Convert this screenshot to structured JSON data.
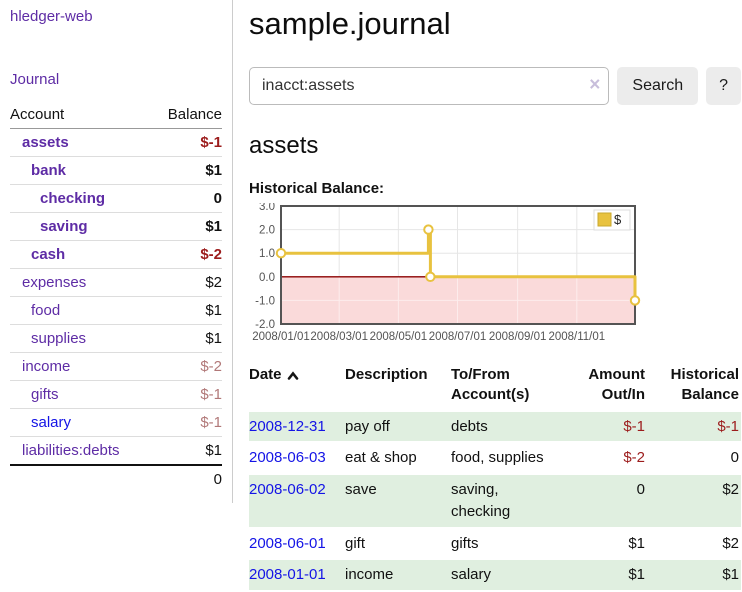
{
  "sidebar": {
    "brand": "hledger-web",
    "nav_journal": "Journal",
    "table": {
      "headers": [
        "Account",
        "Balance"
      ],
      "rows": [
        {
          "account": "assets",
          "indent": 0,
          "bold": true,
          "balance": "$-1",
          "tone": "neg"
        },
        {
          "account": "bank",
          "indent": 1,
          "bold": true,
          "balance": "$1",
          "tone": "pos"
        },
        {
          "account": "checking",
          "indent": 2,
          "bold": true,
          "balance": "0",
          "tone": "pos"
        },
        {
          "account": "saving",
          "indent": 2,
          "bold": true,
          "balance": "$1",
          "tone": "pos"
        },
        {
          "account": "cash",
          "indent": 1,
          "bold": true,
          "balance": "$-2",
          "tone": "neg"
        },
        {
          "account": "expenses",
          "indent": 0,
          "bold": false,
          "balance": "$2",
          "tone": "pos"
        },
        {
          "account": "food",
          "indent": 1,
          "bold": false,
          "balance": "$1",
          "tone": "pos"
        },
        {
          "account": "supplies",
          "indent": 1,
          "bold": false,
          "balance": "$1",
          "tone": "pos"
        },
        {
          "account": "income",
          "indent": 0,
          "bold": false,
          "balance": "$-2",
          "tone": "negmuted"
        },
        {
          "account": "gifts",
          "indent": 1,
          "bold": false,
          "balance": "$-1",
          "tone": "negmuted"
        },
        {
          "account": "salary",
          "indent": 1,
          "bold": false,
          "balance": "$-1",
          "tone": "negmuted",
          "link_color": "blue"
        },
        {
          "account": "liabilities:debts",
          "indent": 0,
          "bold": false,
          "balance": "$1",
          "tone": "pos"
        }
      ],
      "total": "0"
    }
  },
  "main": {
    "title": "sample.journal"
  },
  "search": {
    "value": "inacct:assets",
    "clear_icon": "×",
    "submit_label": "Search",
    "help_label": "?"
  },
  "account_page": {
    "heading": "assets",
    "chart_title": "Historical Balance:"
  },
  "chart_data": {
    "type": "line",
    "step": true,
    "title": "Historical Balance:",
    "x_range": [
      "2008-01-01",
      "2008-12-31"
    ],
    "ylim": [
      -2,
      3
    ],
    "y_ticks": [
      "3.0",
      "2.0",
      "1.0",
      "0.0",
      "-1.0",
      "-2.0"
    ],
    "x_ticks": [
      {
        "date": "2008-01-01",
        "label": "2008/01/01"
      },
      {
        "date": "2008-03-01",
        "label": "2008/03/01"
      },
      {
        "date": "2008-05-01",
        "label": "2008/05/01"
      },
      {
        "date": "2008-07-01",
        "label": "2008/07/01"
      },
      {
        "date": "2008-09-01",
        "label": "2008/09/01"
      },
      {
        "date": "2008-11-01",
        "label": "2008/11/01"
      }
    ],
    "series": [
      {
        "name": "$",
        "color": "#e8c23f",
        "points": [
          {
            "date": "2008-01-01",
            "value": 1
          },
          {
            "date": "2008-06-01",
            "value": 2
          },
          {
            "date": "2008-06-03",
            "value": 0
          },
          {
            "date": "2008-12-31",
            "value": -1
          }
        ]
      }
    ],
    "legend": {
      "label": "$",
      "position": "top-right"
    },
    "grid": true,
    "negative_fill": "#fadada",
    "zero_line_color": "#8b0000",
    "border_color": "#545454"
  },
  "register": {
    "columns": [
      "Date",
      "Description",
      "To/From Account(s)",
      "Amount Out/In",
      "Historical Balance"
    ],
    "sort_icon": "chevron-up",
    "rows": [
      {
        "date": "2008-12-31",
        "description": "pay off",
        "accounts": "debts",
        "amount": "$-1",
        "amount_tone": "neg",
        "balance": "$-1",
        "balance_tone": "neg"
      },
      {
        "date": "2008-06-03",
        "description": "eat & shop",
        "accounts": "food, supplies",
        "amount": "$-2",
        "amount_tone": "neg",
        "balance": "0",
        "balance_tone": "pos"
      },
      {
        "date": "2008-06-02",
        "description": "save",
        "accounts": "saving, checking",
        "amount": "0",
        "amount_tone": "pos",
        "balance": "$2",
        "balance_tone": "pos"
      },
      {
        "date": "2008-06-01",
        "description": "gift",
        "accounts": "gifts",
        "amount": "$1",
        "amount_tone": "pos",
        "balance": "$2",
        "balance_tone": "pos"
      },
      {
        "date": "2008-01-01",
        "description": "income",
        "accounts": "salary",
        "amount": "$1",
        "amount_tone": "pos",
        "balance": "$1",
        "balance_tone": "pos"
      }
    ]
  },
  "colors": {
    "link_purple": "#5e2ca5",
    "link_blue": "#1414e6",
    "negative_strong": "#9c1c1c",
    "negative_muted": "#b17878",
    "row_green": "#e0efe0",
    "chart_gold": "#e8c23f",
    "chart_negative_area": "#fadada",
    "chart_zero_line": "#8b0000",
    "chart_border": "#545454"
  }
}
